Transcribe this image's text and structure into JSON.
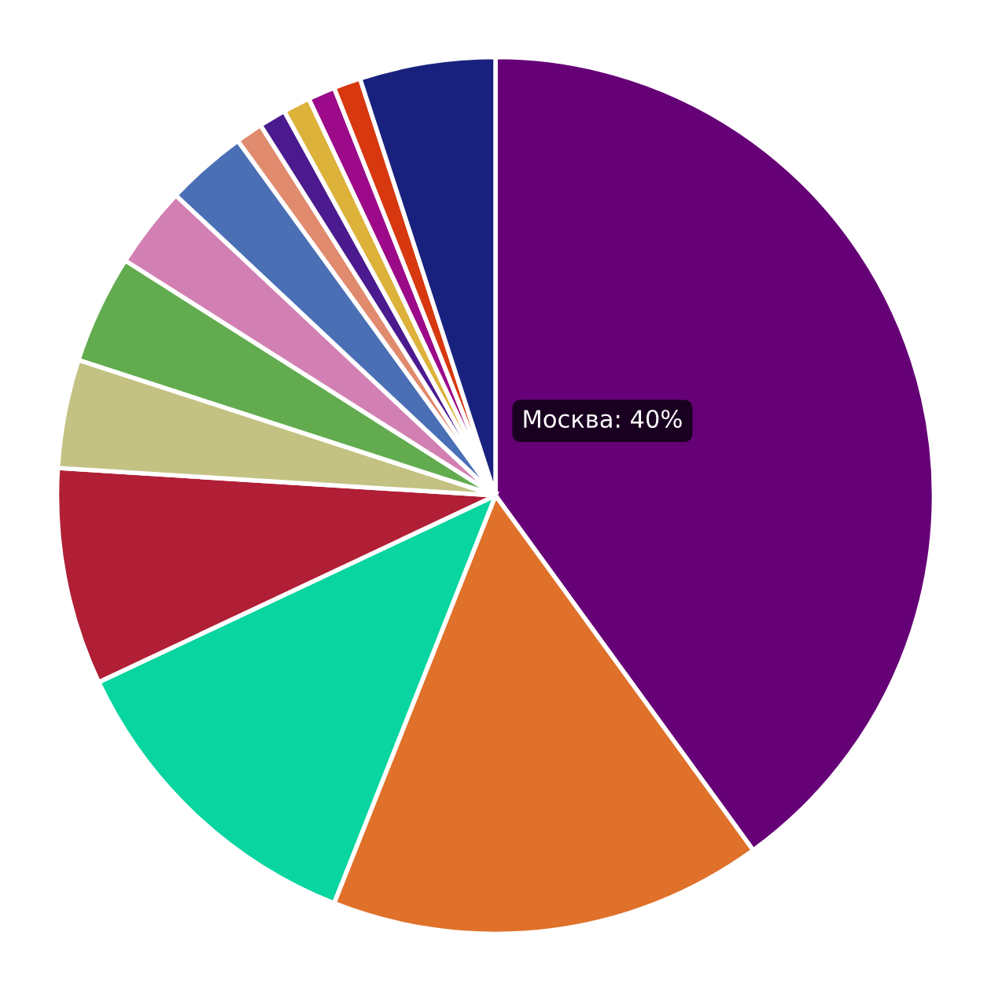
{
  "chart_data": {
    "type": "pie",
    "categories": [
      "Москва",
      null,
      null,
      null,
      null,
      null,
      null,
      null,
      null,
      null,
      null,
      null,
      null,
      null
    ],
    "values": [
      40,
      16,
      12,
      8,
      4,
      4,
      3,
      3,
      1,
      1,
      1,
      1,
      1,
      5
    ],
    "colors": [
      "#660077",
      "#e0712a",
      "#08d59f",
      "#b01f35",
      "#c4c283",
      "#62ac4f",
      "#d280b3",
      "#4a6fb5",
      "#e08a6e",
      "#4b1a8f",
      "#ddb23a",
      "#9c0a8a",
      "#d7380f",
      "#18227e"
    ],
    "value_labels": [
      "40%",
      null,
      null,
      null,
      null,
      null,
      null,
      null,
      null,
      null,
      null,
      null,
      null,
      null
    ]
  }
}
